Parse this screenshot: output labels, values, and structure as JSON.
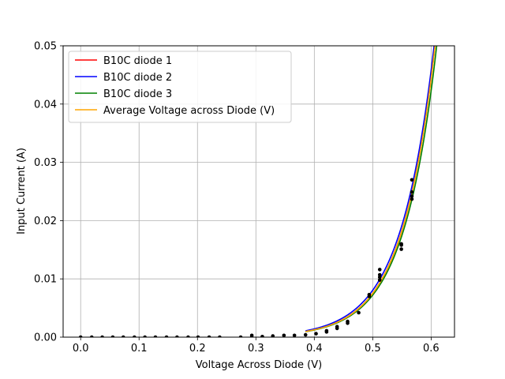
{
  "chart_data": {
    "type": "line",
    "title": "",
    "xlabel": "Voltage Across Diode (V)",
    "ylabel": "Input Current (A)",
    "xlim": [
      -0.03,
      0.64
    ],
    "ylim": [
      0.0,
      0.05
    ],
    "grid": true,
    "legend_position": "top-left",
    "x_ticks": [
      0.0,
      0.1,
      0.2,
      0.3,
      0.4,
      0.5,
      0.6
    ],
    "x_tick_labels": [
      "0.0",
      "0.1",
      "0.2",
      "0.3",
      "0.4",
      "0.5",
      "0.6"
    ],
    "y_ticks": [
      0.0,
      0.01,
      0.02,
      0.03,
      0.04,
      0.05
    ],
    "y_tick_labels": [
      "0.00",
      "0.01",
      "0.02",
      "0.03",
      "0.04",
      "0.05"
    ],
    "fit_x_range": [
      0.385,
      0.62
    ],
    "series": [
      {
        "name": "B10C diode 1",
        "color": "#ff0000",
        "model": {
          "a": 1.046e-06,
          "b": 17.763
        }
      },
      {
        "name": "B10C diode 2",
        "color": "#0000ff",
        "model": {
          "a": 1.359e-06,
          "b": 17.375
        }
      },
      {
        "name": "B10C diode 3",
        "color": "#008000",
        "model": {
          "a": 1.047e-06,
          "b": 17.677
        }
      },
      {
        "name": "Average Voltage across Diode (V)",
        "color": "#ffa500",
        "model": {
          "a": 1.044e-06,
          "b": 17.763
        }
      }
    ],
    "scatter_points": [
      [
        0.0,
        0.0
      ],
      [
        0.019,
        0.0
      ],
      [
        0.037,
        0.0
      ],
      [
        0.055,
        0.0
      ],
      [
        0.073,
        0.0
      ],
      [
        0.092,
        0.0
      ],
      [
        0.11,
        0.0
      ],
      [
        0.128,
        0.0
      ],
      [
        0.147,
        0.0
      ],
      [
        0.165,
        0.0
      ],
      [
        0.184,
        0.0
      ],
      [
        0.201,
        0.0
      ],
      [
        0.22,
        0.0
      ],
      [
        0.238,
        0.0
      ],
      [
        0.274,
        0.0
      ],
      [
        0.293,
        0.0
      ],
      [
        0.293,
        0.0003
      ],
      [
        0.311,
        0.0001
      ],
      [
        0.329,
        0.0002
      ],
      [
        0.348,
        0.0003
      ],
      [
        0.366,
        0.0003
      ],
      [
        0.385,
        0.0004
      ],
      [
        0.403,
        0.0006
      ],
      [
        0.421,
        0.0009
      ],
      [
        0.421,
        0.0011
      ],
      [
        0.439,
        0.0015
      ],
      [
        0.439,
        0.0018
      ],
      [
        0.457,
        0.0024
      ],
      [
        0.457,
        0.0027
      ],
      [
        0.476,
        0.0042
      ],
      [
        0.494,
        0.007
      ],
      [
        0.494,
        0.0073
      ],
      [
        0.512,
        0.0098
      ],
      [
        0.512,
        0.0103
      ],
      [
        0.512,
        0.0107
      ],
      [
        0.512,
        0.0116
      ],
      [
        0.549,
        0.0151
      ],
      [
        0.549,
        0.0158
      ],
      [
        0.549,
        0.016
      ],
      [
        0.567,
        0.0237
      ],
      [
        0.567,
        0.0242
      ],
      [
        0.567,
        0.0249
      ],
      [
        0.567,
        0.027
      ]
    ]
  }
}
